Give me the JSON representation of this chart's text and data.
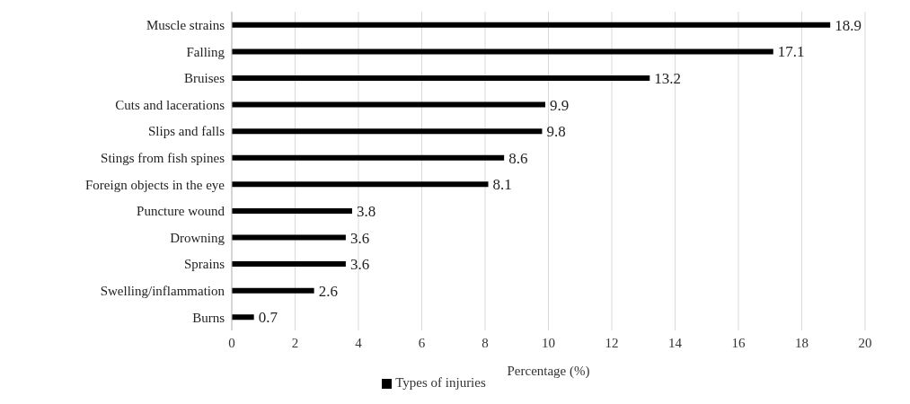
{
  "chart_data": {
    "type": "bar",
    "orientation": "horizontal",
    "xlabel": "Percentage (%)",
    "categories": [
      "Muscle strains",
      "Falling",
      "Bruises",
      "Cuts and lacerations",
      "Slips and falls",
      "Stings from fish spines",
      "Foreign objects in the eye",
      "Puncture wound",
      "Drowning",
      "Sprains",
      "Swelling/inflammation",
      "Burns"
    ],
    "series": [
      {
        "name": "Types of injuries",
        "color": "#000000",
        "values": [
          18.9,
          17.1,
          13.2,
          9.9,
          9.8,
          8.6,
          8.1,
          3.8,
          3.6,
          3.6,
          2.6,
          0.7
        ]
      }
    ],
    "xlim": [
      0,
      20
    ],
    "xticks": [
      0,
      2,
      4,
      6,
      8,
      10,
      12,
      14,
      16,
      18,
      20
    ],
    "grid": "x",
    "legend": "bottom",
    "data_labels": true
  }
}
